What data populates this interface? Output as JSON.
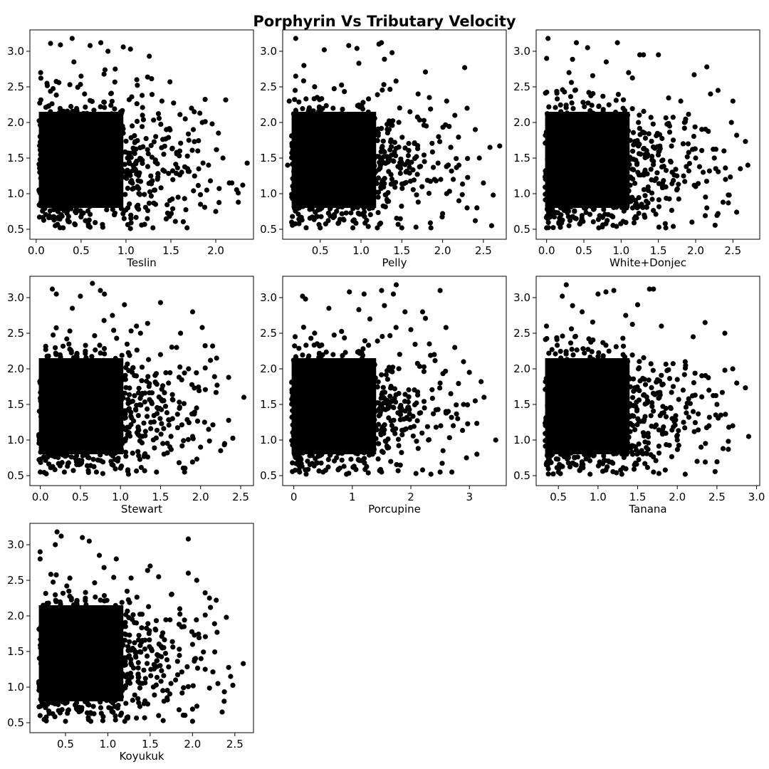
{
  "figure": {
    "title": "Porphyrin Vs Tributary Velocity",
    "point_color": "#000000",
    "background": "#ffffff"
  },
  "chart_data": [
    {
      "type": "scatter",
      "xlabel": "Teslin",
      "ylabel": "",
      "xlim": [
        -0.07,
        2.42
      ],
      "ylim": [
        0.36,
        3.3
      ],
      "xticks": [
        0.0,
        0.5,
        1.0,
        1.5,
        2.0
      ],
      "xtick_labels": [
        "0.0",
        "0.5",
        "1.0",
        "1.5",
        "2.0"
      ],
      "yticks": [
        0.5,
        1.0,
        1.5,
        2.0,
        2.5,
        3.0
      ],
      "ytick_labels": [
        "0.5",
        "1.0",
        "1.5",
        "2.0",
        "2.5",
        "3.0"
      ],
      "grid": false,
      "points": [
        [
          0.16,
          3.11
        ],
        [
          0.4,
          3.18
        ],
        [
          0.27,
          3.09
        ],
        [
          0.72,
          3.12
        ],
        [
          0.97,
          3.06
        ],
        [
          0.6,
          3.08
        ],
        [
          0.8,
          3.0
        ],
        [
          1.05,
          3.03
        ],
        [
          1.26,
          2.93
        ],
        [
          1.49,
          2.57
        ],
        [
          1.73,
          2.2
        ],
        [
          1.76,
          2.15
        ],
        [
          1.85,
          2.0
        ],
        [
          1.96,
          1.98
        ],
        [
          2.03,
          1.85
        ],
        [
          2.08,
          1.5
        ],
        [
          2.15,
          1.15
        ],
        [
          2.18,
          1.15
        ],
        [
          2.3,
          1.12
        ],
        [
          2.25,
          1.01
        ],
        [
          1.94,
          1.18
        ],
        [
          1.9,
          1.05
        ],
        [
          1.68,
          0.52
        ],
        [
          1.55,
          0.61
        ],
        [
          1.3,
          0.52
        ],
        [
          1.05,
          0.51
        ],
        [
          0.6,
          0.53
        ],
        [
          0.3,
          0.52
        ],
        [
          1.8,
          1.6
        ],
        [
          1.7,
          1.75
        ],
        [
          1.62,
          1.3
        ],
        [
          1.58,
          0.95
        ],
        [
          1.45,
          1.9
        ],
        [
          1.4,
          2.3
        ],
        [
          1.35,
          1.42
        ],
        [
          1.33,
          0.85
        ],
        [
          0.05,
          2.7
        ],
        [
          0.12,
          2.55
        ],
        [
          0.88,
          2.75
        ],
        [
          1.12,
          2.6
        ],
        [
          1.18,
          2.38
        ],
        [
          0.42,
          2.85
        ],
        [
          0.5,
          2.65
        ],
        [
          1.92,
          1.4
        ],
        [
          2.0,
          0.75
        ],
        [
          1.83,
          0.85
        ],
        [
          1.75,
          1.9
        ],
        [
          1.66,
          2.05
        ]
      ]
    },
    {
      "type": "scatter",
      "xlabel": "Pelly",
      "ylabel": "",
      "xlim": [
        0.04,
        2.78
      ],
      "ylim": [
        0.36,
        3.3
      ],
      "xticks": [
        0.5,
        1.0,
        1.5,
        2.0,
        2.5
      ],
      "xtick_labels": [
        "0.5",
        "1.0",
        "1.5",
        "2.0",
        "2.5"
      ],
      "yticks": [
        0.5,
        1.0,
        1.5,
        2.0,
        2.5,
        3.0
      ],
      "ytick_labels": [
        "0.5",
        "1.0",
        "1.5",
        "2.0",
        "2.5",
        "3.0"
      ],
      "grid": false,
      "points": [
        [
          0.2,
          3.18
        ],
        [
          0.55,
          3.02
        ],
        [
          0.85,
          3.08
        ],
        [
          0.95,
          3.04
        ],
        [
          1.25,
          3.12
        ],
        [
          1.22,
          3.1
        ],
        [
          1.38,
          2.98
        ],
        [
          2.27,
          2.77
        ],
        [
          2.05,
          2.3
        ],
        [
          2.15,
          2.1
        ],
        [
          2.3,
          2.2
        ],
        [
          2.4,
          1.9
        ],
        [
          2.45,
          1.5
        ],
        [
          2.5,
          1.15
        ],
        [
          2.58,
          1.65
        ],
        [
          2.7,
          1.67
        ],
        [
          2.62,
          0.98
        ],
        [
          2.6,
          0.55
        ],
        [
          2.4,
          0.62
        ],
        [
          2.3,
          0.8
        ],
        [
          2.0,
          0.72
        ],
        [
          1.85,
          0.59
        ],
        [
          1.5,
          0.52
        ],
        [
          1.2,
          0.52
        ],
        [
          0.9,
          0.52
        ],
        [
          0.5,
          0.52
        ],
        [
          0.15,
          0.6
        ],
        [
          0.1,
          1.4
        ],
        [
          0.12,
          2.3
        ],
        [
          0.2,
          2.65
        ],
        [
          0.3,
          2.8
        ],
        [
          1.6,
          2.15
        ],
        [
          1.7,
          2.4
        ],
        [
          1.8,
          1.95
        ],
        [
          1.95,
          1.8
        ],
        [
          2.1,
          1.65
        ],
        [
          2.2,
          1.4
        ],
        [
          1.9,
          1.2
        ],
        [
          2.05,
          1.0
        ],
        [
          2.2,
          0.9
        ]
      ]
    },
    {
      "type": "scatter",
      "xlabel": "White+Donjec",
      "ylabel": "",
      "xlim": [
        -0.14,
        2.86
      ],
      "ylim": [
        0.36,
        3.3
      ],
      "xticks": [
        0.0,
        0.5,
        1.0,
        1.5,
        2.0,
        2.5
      ],
      "xtick_labels": [
        "0.0",
        "0.5",
        "1.0",
        "1.5",
        "2.0",
        "2.5"
      ],
      "yticks": [
        0.5,
        1.0,
        1.5,
        2.0,
        2.5,
        3.0
      ],
      "ytick_labels": [
        "0.5",
        "1.0",
        "1.5",
        "2.0",
        "2.5",
        "3.0"
      ],
      "grid": false,
      "points": [
        [
          0.02,
          3.18
        ],
        [
          0.0,
          2.9
        ],
        [
          0.4,
          3.12
        ],
        [
          0.55,
          3.05
        ],
        [
          0.95,
          3.12
        ],
        [
          1.25,
          2.95
        ],
        [
          1.3,
          2.95
        ],
        [
          1.5,
          2.95
        ],
        [
          1.98,
          2.67
        ],
        [
          2.15,
          2.78
        ],
        [
          2.2,
          2.4
        ],
        [
          2.3,
          2.45
        ],
        [
          2.5,
          2.3
        ],
        [
          2.48,
          2.0
        ],
        [
          2.55,
          1.82
        ],
        [
          2.6,
          1.35
        ],
        [
          2.7,
          1.4
        ],
        [
          2.55,
          0.74
        ],
        [
          2.45,
          0.98
        ],
        [
          2.3,
          0.72
        ],
        [
          2.15,
          0.8
        ],
        [
          1.95,
          0.6
        ],
        [
          1.7,
          0.54
        ],
        [
          1.6,
          0.52
        ],
        [
          0.7,
          0.52
        ],
        [
          0.3,
          0.55
        ],
        [
          0.0,
          0.52
        ],
        [
          1.8,
          2.3
        ],
        [
          1.85,
          2.0
        ],
        [
          1.9,
          1.7
        ],
        [
          2.0,
          1.5
        ],
        [
          2.1,
          1.3
        ],
        [
          2.25,
          1.5
        ],
        [
          2.38,
          1.6
        ],
        [
          2.4,
          1.2
        ],
        [
          2.0,
          1.1
        ],
        [
          1.75,
          1.25
        ],
        [
          1.65,
          1.95
        ],
        [
          0.3,
          2.7
        ],
        [
          0.8,
          2.85
        ],
        [
          1.1,
          2.7
        ]
      ]
    },
    {
      "type": "scatter",
      "xlabel": "Stewart",
      "ylabel": "",
      "xlim": [
        -0.13,
        2.66
      ],
      "ylim": [
        0.36,
        3.3
      ],
      "xticks": [
        0.0,
        0.5,
        1.0,
        1.5,
        2.0,
        2.5
      ],
      "xtick_labels": [
        "0.0",
        "0.5",
        "1.0",
        "1.5",
        "2.0",
        "2.5"
      ],
      "yticks": [
        0.5,
        1.0,
        1.5,
        2.0,
        2.5,
        3.0
      ],
      "ytick_labels": [
        "0.5",
        "1.0",
        "1.5",
        "2.0",
        "2.5",
        "3.0"
      ],
      "grid": false,
      "points": [
        [
          0.15,
          3.12
        ],
        [
          0.2,
          3.05
        ],
        [
          0.5,
          3.02
        ],
        [
          0.65,
          3.2
        ],
        [
          0.75,
          3.1
        ],
        [
          0.8,
          3.05
        ],
        [
          1.05,
          2.9
        ],
        [
          1.5,
          2.93
        ],
        [
          1.9,
          2.8
        ],
        [
          2.02,
          2.58
        ],
        [
          2.15,
          2.32
        ],
        [
          2.2,
          2.15
        ],
        [
          2.35,
          1.88
        ],
        [
          2.54,
          1.6
        ],
        [
          2.3,
          0.95
        ],
        [
          2.25,
          0.85
        ],
        [
          2.1,
          1.15
        ],
        [
          2.05,
          1.25
        ],
        [
          1.95,
          1.45
        ],
        [
          1.8,
          0.55
        ],
        [
          1.45,
          0.55
        ],
        [
          1.1,
          0.52
        ],
        [
          0.7,
          0.55
        ],
        [
          0.3,
          0.55
        ],
        [
          0.0,
          0.55
        ],
        [
          1.75,
          2.5
        ],
        [
          1.7,
          2.3
        ],
        [
          1.85,
          2.0
        ],
        [
          1.6,
          1.8
        ],
        [
          1.65,
          1.3
        ],
        [
          1.9,
          1.05
        ],
        [
          2.0,
          0.9
        ],
        [
          1.5,
          2.2
        ],
        [
          1.25,
          2.5
        ],
        [
          0.4,
          2.85
        ],
        [
          0.9,
          2.75
        ],
        [
          1.2,
          2.6
        ]
      ]
    },
    {
      "type": "scatter",
      "xlabel": "Porcupine",
      "ylabel": "",
      "xlim": [
        -0.19,
        3.63
      ],
      "ylim": [
        0.36,
        3.3
      ],
      "xticks": [
        0,
        1,
        2,
        3
      ],
      "xtick_labels": [
        "0",
        "1",
        "2",
        "3"
      ],
      "yticks": [
        0.5,
        1.0,
        1.5,
        2.0,
        2.5,
        3.0
      ],
      "ytick_labels": [
        "0.5",
        "1.0",
        "1.5",
        "2.0",
        "2.5",
        "3.0"
      ],
      "grid": false,
      "points": [
        [
          0.15,
          3.02
        ],
        [
          0.2,
          2.98
        ],
        [
          0.95,
          3.08
        ],
        [
          1.2,
          3.05
        ],
        [
          1.5,
          3.1
        ],
        [
          1.7,
          3.05
        ],
        [
          1.75,
          3.18
        ],
        [
          2.5,
          3.1
        ],
        [
          2.2,
          2.8
        ],
        [
          2.6,
          2.58
        ],
        [
          2.75,
          2.3
        ],
        [
          2.9,
          2.1
        ],
        [
          3.0,
          1.95
        ],
        [
          3.2,
          1.82
        ],
        [
          3.25,
          1.6
        ],
        [
          3.1,
          1.55
        ],
        [
          3.45,
          1.0
        ],
        [
          2.95,
          0.75
        ],
        [
          2.7,
          0.55
        ],
        [
          2.5,
          0.55
        ],
        [
          2.2,
          0.58
        ],
        [
          1.5,
          0.55
        ],
        [
          0.9,
          0.52
        ],
        [
          0.5,
          0.55
        ],
        [
          0.1,
          0.55
        ],
        [
          2.4,
          2.2
        ],
        [
          2.5,
          1.8
        ],
        [
          2.6,
          1.4
        ],
        [
          2.8,
          1.3
        ],
        [
          2.9,
          1.5
        ],
        [
          2.3,
          1.0
        ],
        [
          2.55,
          0.85
        ],
        [
          2.0,
          2.55
        ],
        [
          1.9,
          2.8
        ],
        [
          0.6,
          2.85
        ],
        [
          1.3,
          2.7
        ]
      ]
    },
    {
      "type": "scatter",
      "xlabel": "Tanana",
      "ylabel": "",
      "xlim": [
        0.22,
        3.04
      ],
      "ylim": [
        0.36,
        3.3
      ],
      "xticks": [
        0.5,
        1.0,
        1.5,
        2.0,
        2.5,
        3.0
      ],
      "xtick_labels": [
        "0.5",
        "1.0",
        "1.5",
        "2.0",
        "2.5",
        "3.0"
      ],
      "yticks": [
        0.5,
        1.0,
        1.5,
        2.0,
        2.5,
        3.0
      ],
      "ytick_labels": [
        "0.5",
        "1.0",
        "1.5",
        "2.0",
        "2.5",
        "3.0"
      ],
      "grid": false,
      "points": [
        [
          0.6,
          3.18
        ],
        [
          0.55,
          3.02
        ],
        [
          1.0,
          3.05
        ],
        [
          1.1,
          3.08
        ],
        [
          1.2,
          3.1
        ],
        [
          1.65,
          3.12
        ],
        [
          1.7,
          3.12
        ],
        [
          1.5,
          2.9
        ],
        [
          2.35,
          2.65
        ],
        [
          2.6,
          2.5
        ],
        [
          2.6,
          1.98
        ],
        [
          2.7,
          2.0
        ],
        [
          2.75,
          1.8
        ],
        [
          2.9,
          1.05
        ],
        [
          2.7,
          1.2
        ],
        [
          2.65,
          1.18
        ],
        [
          2.55,
          1.35
        ],
        [
          2.5,
          1.5
        ],
        [
          2.4,
          1.7
        ],
        [
          2.3,
          0.9
        ],
        [
          2.25,
          0.7
        ],
        [
          2.1,
          0.52
        ],
        [
          1.7,
          0.55
        ],
        [
          1.3,
          0.52
        ],
        [
          0.9,
          0.52
        ],
        [
          0.5,
          0.55
        ],
        [
          0.35,
          0.65
        ],
        [
          0.35,
          2.6
        ],
        [
          2.2,
          2.45
        ],
        [
          2.1,
          2.1
        ],
        [
          2.0,
          1.85
        ],
        [
          2.2,
          1.4
        ],
        [
          2.4,
          1.2
        ],
        [
          2.0,
          1.0
        ],
        [
          1.8,
          2.6
        ],
        [
          0.8,
          2.8
        ],
        [
          1.35,
          2.75
        ]
      ]
    },
    {
      "type": "scatter",
      "xlabel": "Koyukuk",
      "ylabel": "",
      "xlim": [
        0.08,
        2.72
      ],
      "ylim": [
        0.36,
        3.3
      ],
      "xticks": [
        0.5,
        1.0,
        1.5,
        2.0,
        2.5
      ],
      "xtick_labels": [
        "0.5",
        "1.0",
        "1.5",
        "2.0",
        "2.5"
      ],
      "yticks": [
        0.5,
        1.0,
        1.5,
        2.0,
        2.5,
        3.0
      ],
      "ytick_labels": [
        "0.5",
        "1.0",
        "1.5",
        "2.0",
        "2.5",
        "3.0"
      ],
      "grid": false,
      "points": [
        [
          0.4,
          3.18
        ],
        [
          0.45,
          3.12
        ],
        [
          0.38,
          3.0
        ],
        [
          0.7,
          3.1
        ],
        [
          0.78,
          3.05
        ],
        [
          0.2,
          2.9
        ],
        [
          0.2,
          2.8
        ],
        [
          1.95,
          3.08
        ],
        [
          1.95,
          2.6
        ],
        [
          2.05,
          2.5
        ],
        [
          2.2,
          2.25
        ],
        [
          2.28,
          2.22
        ],
        [
          2.4,
          1.98
        ],
        [
          2.6,
          1.33
        ],
        [
          2.45,
          1.15
        ],
        [
          2.3,
          1.05
        ],
        [
          2.35,
          0.65
        ],
        [
          2.0,
          0.52
        ],
        [
          1.6,
          0.6
        ],
        [
          1.2,
          0.52
        ],
        [
          0.8,
          0.52
        ],
        [
          0.5,
          0.52
        ],
        [
          0.2,
          0.6
        ],
        [
          1.5,
          2.7
        ],
        [
          1.6,
          2.55
        ],
        [
          1.75,
          2.3
        ],
        [
          1.85,
          2.1
        ],
        [
          1.9,
          1.85
        ],
        [
          2.0,
          1.6
        ],
        [
          2.1,
          1.4
        ],
        [
          2.15,
          1.25
        ],
        [
          1.8,
          1.1
        ],
        [
          1.7,
          0.85
        ],
        [
          1.1,
          2.8
        ],
        [
          0.9,
          2.85
        ]
      ]
    }
  ]
}
